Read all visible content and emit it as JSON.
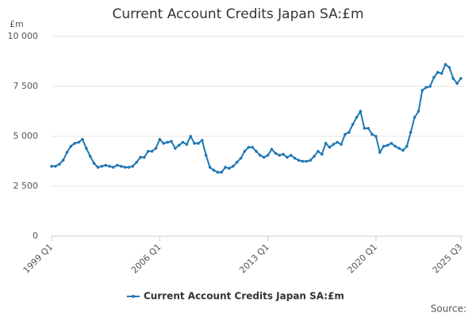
{
  "chart_data": {
    "type": "line",
    "title": "Current Account Credits Japan SA:£m",
    "y_unit": "£m",
    "categories": [
      "1999 Q1",
      null,
      null,
      null,
      null,
      null,
      null,
      null,
      null,
      null,
      null,
      null,
      null,
      null,
      null,
      null,
      null,
      null,
      null,
      null,
      null,
      null,
      null,
      null,
      null,
      null,
      null,
      null,
      "2006 Q1",
      null,
      null,
      null,
      null,
      null,
      null,
      null,
      null,
      null,
      null,
      null,
      null,
      null,
      null,
      null,
      null,
      null,
      null,
      null,
      null,
      null,
      null,
      null,
      null,
      null,
      null,
      null,
      "2013 Q1",
      null,
      null,
      null,
      null,
      null,
      null,
      null,
      null,
      null,
      null,
      null,
      null,
      null,
      null,
      null,
      null,
      null,
      null,
      null,
      null,
      null,
      null,
      null,
      null,
      null,
      null,
      null,
      "2020 Q1",
      null,
      null,
      null,
      null,
      null,
      null,
      null,
      null,
      null,
      null,
      null,
      null,
      null,
      null,
      null,
      null,
      null,
      null,
      null,
      null,
      null,
      "2025 Q3"
    ],
    "series": [
      {
        "name": "Current Account Credits Japan SA:£m",
        "color": "#1f77b4",
        "values": [
          3500,
          3500,
          3600,
          3800,
          4200,
          4500,
          4650,
          4700,
          4850,
          4400,
          4000,
          3650,
          3450,
          3500,
          3550,
          3500,
          3450,
          3550,
          3500,
          3450,
          3450,
          3500,
          3700,
          3950,
          3950,
          4250,
          4250,
          4400,
          4850,
          4650,
          4700,
          4750,
          4400,
          4550,
          4700,
          4600,
          5000,
          4650,
          4650,
          4800,
          4050,
          3450,
          3300,
          3200,
          3200,
          3450,
          3400,
          3500,
          3700,
          3900,
          4250,
          4450,
          4450,
          4250,
          4050,
          3950,
          4050,
          4350,
          4150,
          4050,
          4100,
          3950,
          4050,
          3900,
          3800,
          3750,
          3750,
          3800,
          4000,
          4250,
          4100,
          4650,
          4450,
          4600,
          4700,
          4600,
          5100,
          5200,
          5600,
          5950,
          6250,
          5400,
          5400,
          5100,
          5000,
          4200,
          4500,
          4550,
          4650,
          4500,
          4400,
          4300,
          4500,
          5200,
          5950,
          6250,
          7300,
          7450,
          7500,
          7950,
          8200,
          8150,
          8600,
          8450,
          7900,
          7650,
          7900
        ]
      }
    ],
    "ylim": [
      0,
      10000
    ],
    "yticks": [
      0,
      {
        "value": 2500,
        "label": "2 500"
      },
      {
        "value": 5000,
        "label": "5 000"
      },
      {
        "value": 7500,
        "label": "7 500"
      },
      {
        "value": 10000,
        "label": "10 000"
      }
    ],
    "grid": true,
    "source": "Source:"
  }
}
